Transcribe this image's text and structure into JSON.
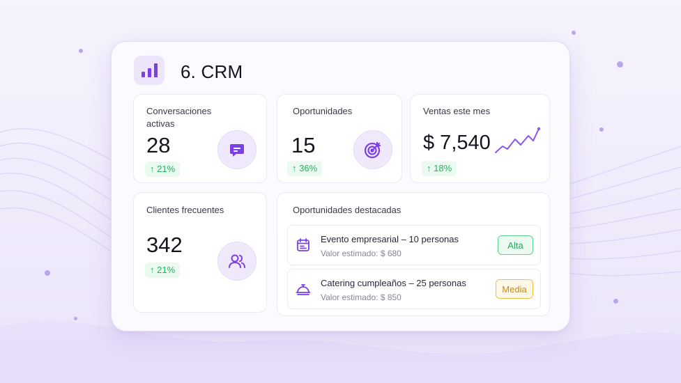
{
  "app": {
    "title": "6. CRM"
  },
  "stats": [
    {
      "label": "Conversaciones activas",
      "value": "28",
      "delta": "↑ 21%",
      "icon": "chat-icon"
    },
    {
      "label": "Oportunidades",
      "value": "15",
      "delta": "↑ 36%",
      "icon": "target-icon"
    },
    {
      "label": "Ventas este mes",
      "value": "$ 7,540",
      "delta": "↑ 18%",
      "icon": "trend-line-icon"
    },
    {
      "label": "Clientes frecuentes",
      "value": "342",
      "delta": "↑ 21%",
      "icon": "users-icon"
    }
  ],
  "opportunities": {
    "heading": "Oportunidades destacadas",
    "items": [
      {
        "title": "Evento empresarial – 10 personas",
        "subtitle": "Valor estimado: $ 680",
        "priority": "Alta",
        "icon": "calendar-icon",
        "priority_color": "#25a55a"
      },
      {
        "title": "Catering cumpleaños – 25 personas",
        "subtitle": "Valor estimado: $ 850",
        "priority": "Media",
        "icon": "food-cloche-icon",
        "priority_color": "#c98a10"
      }
    ]
  },
  "colors": {
    "accent": "#7b3fe4",
    "positive": "#25b35d",
    "background": "#f2eefb"
  }
}
